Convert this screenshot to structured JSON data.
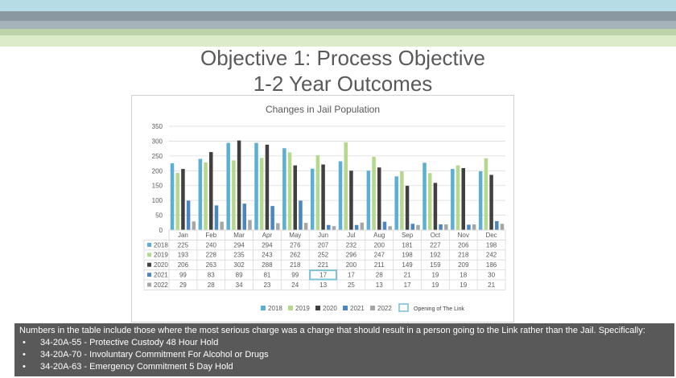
{
  "slide": {
    "title_line1": "Objective 1: Process Objective",
    "title_line2": "1-2 Year Outcomes",
    "notes_intro": "Numbers in the table include those where the most serious charge was a charge that should result in a person going to the Link rather than the Jail. Specifically:",
    "notes_items": [
      "34-20A-55 - Protective Custody 48 Hour Hold",
      "34-20A-70 - Involuntary Commitment For Alcohol or Drugs",
      "34-20A-63 - Emergency Commitment 5 Day Hold"
    ]
  },
  "chart_data": {
    "type": "bar",
    "title": "Changes in Jail Population",
    "categories": [
      "Jan",
      "Feb",
      "Mar",
      "Apr",
      "May",
      "Jun",
      "Jul",
      "Aug",
      "Sep",
      "Oct",
      "Nov",
      "Dec"
    ],
    "ylim": [
      0,
      350
    ],
    "yticks": [
      0,
      50,
      100,
      150,
      200,
      250,
      300,
      350
    ],
    "grid": true,
    "series": [
      {
        "name": "2018",
        "color": "#5bafd4",
        "values": [
          225,
          240,
          294,
          294,
          276,
          207,
          232,
          200,
          181,
          227,
          206,
          198
        ]
      },
      {
        "name": "2019",
        "color": "#b4d88c",
        "values": [
          193,
          228,
          235,
          243,
          262,
          252,
          296,
          247,
          198,
          192,
          218,
          242
        ]
      },
      {
        "name": "2020",
        "color": "#404040",
        "values": [
          206,
          263,
          302,
          288,
          218,
          221,
          200,
          211,
          149,
          159,
          209,
          186
        ]
      },
      {
        "name": "2021",
        "color": "#4a86c2",
        "values": [
          99,
          83,
          89,
          81,
          99,
          17,
          17,
          28,
          21,
          19,
          18,
          30
        ]
      },
      {
        "name": "2022",
        "color": "#a6a6a6",
        "values": [
          29,
          28,
          34,
          23,
          24,
          13,
          25,
          13,
          17,
          19,
          19,
          21
        ]
      }
    ],
    "highlight": {
      "series": "2021",
      "category": "Jun"
    },
    "legend_extra": "Opening of The Link"
  }
}
